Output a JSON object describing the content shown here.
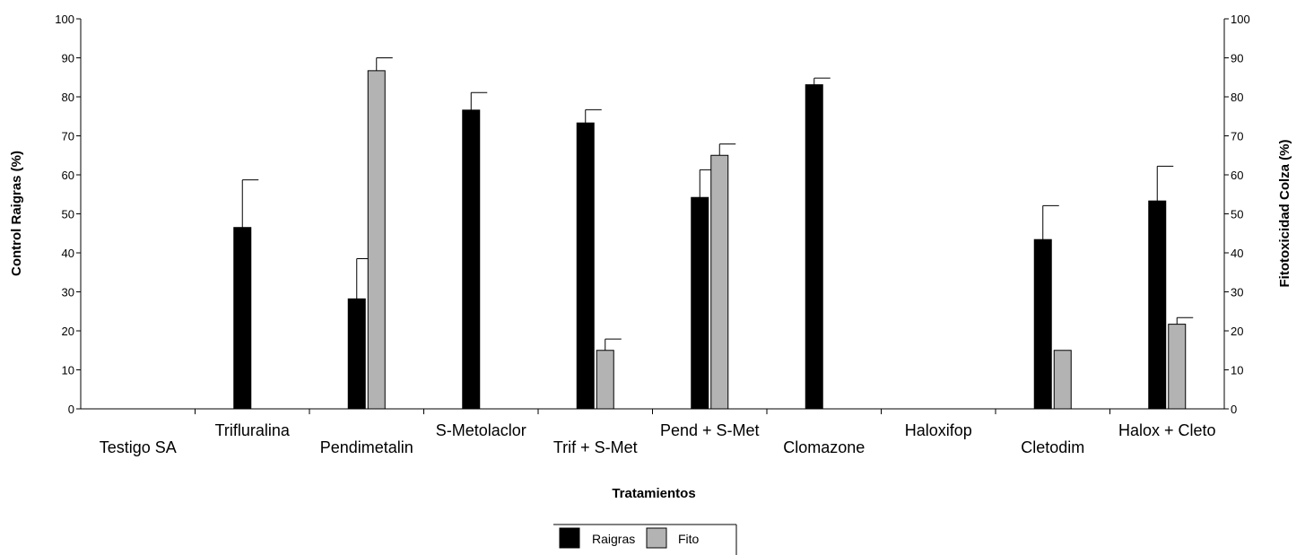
{
  "chart_data": {
    "type": "bar",
    "xlabel": "Tratamientos",
    "ylabel": "Control Raigras (%)",
    "y2label": "Fitotoxicidad Colza (%)",
    "ylim": [
      0,
      100
    ],
    "y2lim": [
      0,
      100
    ],
    "yticks": [
      0,
      10,
      20,
      30,
      40,
      50,
      60,
      70,
      80,
      90,
      100
    ],
    "grid": false,
    "legend_position": "bottom-center",
    "categories": [
      "Testigo SA",
      "Trifluralina",
      "Pendimetalin",
      "S-Metolaclor",
      "Trif + S-Met",
      "Pend + S-Met",
      "Clomazone",
      "Haloxifop",
      "Cletodim",
      "Halox + Cleto"
    ],
    "series": [
      {
        "name": "Raigras",
        "color": "#000000",
        "values": [
          0,
          46.5,
          28.2,
          76.6,
          73.3,
          54.2,
          83.1,
          0,
          43.4,
          53.3
        ],
        "errors": [
          0,
          12.2,
          10.3,
          4.5,
          3.4,
          7.1,
          1.7,
          0,
          8.7,
          8.9
        ]
      },
      {
        "name": "Fito",
        "color": "#b3b3b3",
        "values": [
          0,
          0,
          86.7,
          0,
          15.0,
          65.0,
          0,
          0,
          15.0,
          21.7
        ],
        "errors": [
          0,
          0,
          3.3,
          0,
          2.9,
          2.9,
          0,
          0,
          0,
          1.7
        ]
      }
    ]
  }
}
